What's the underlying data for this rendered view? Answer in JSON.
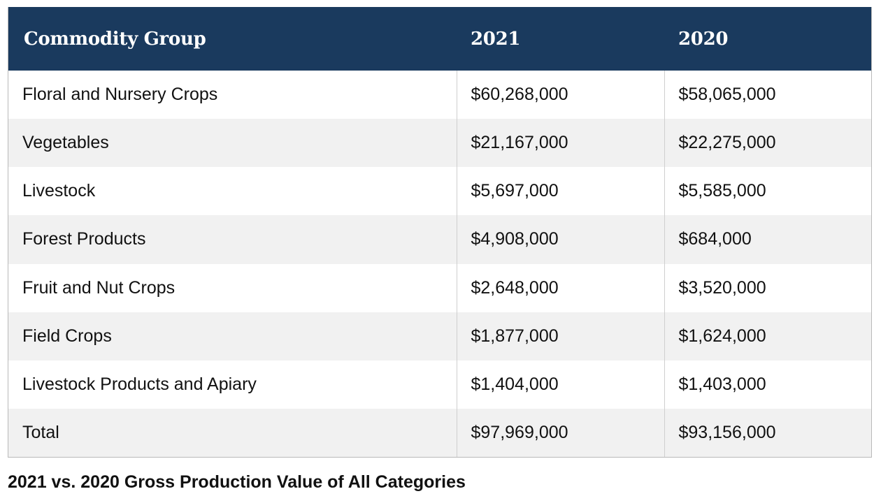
{
  "chart_data": {
    "type": "table",
    "title": "2021 vs. 2020 Gross Production Value of All Categories",
    "columns": [
      "Commodity Group",
      "2021",
      "2020"
    ],
    "rows": [
      {
        "group": "Floral and Nursery Crops",
        "v2021": "$60,268,000",
        "v2020": "$58,065,000"
      },
      {
        "group": "Vegetables",
        "v2021": "$21,167,000",
        "v2020": "$22,275,000"
      },
      {
        "group": "Livestock",
        "v2021": "$5,697,000",
        "v2020": "$5,585,000"
      },
      {
        "group": "Forest Products",
        "v2021": "$4,908,000",
        "v2020": "$684,000"
      },
      {
        "group": "Fruit and Nut Crops",
        "v2021": "$2,648,000",
        "v2020": "$3,520,000"
      },
      {
        "group": "Field Crops",
        "v2021": "$1,877,000",
        "v2020": "$1,624,000"
      },
      {
        "group": "Livestock Products and Apiary",
        "v2021": "$1,404,000",
        "v2020": "$1,403,000"
      },
      {
        "group": "Total",
        "v2021": "$97,969,000",
        "v2020": "$93,156,000"
      }
    ],
    "colors": {
      "header_bg": "#1a3a5e",
      "header_text": "#ffffff",
      "row_alt_bg": "#f1f1f1"
    }
  }
}
